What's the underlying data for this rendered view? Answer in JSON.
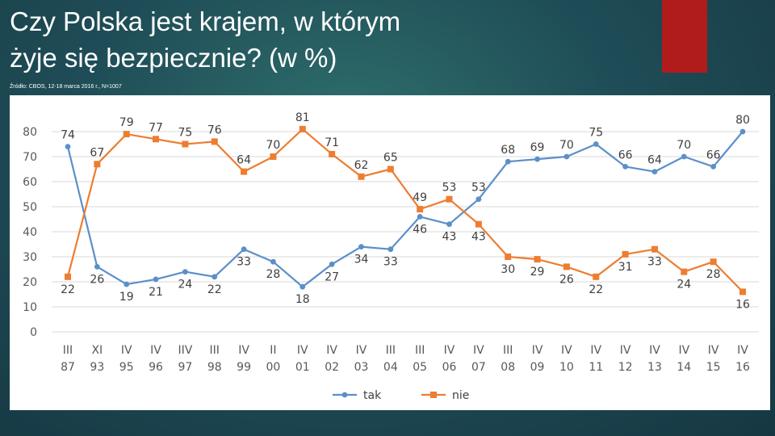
{
  "slide": {
    "title_line1": "Czy Polska jest krajem, w którym",
    "title_line2": "żyje się bezpiecznie?  (w %)",
    "source": "Źródło: CBOS, 12-18 marca 2016 r., N=1007",
    "accent_color": "#b01c1c"
  },
  "chart_data": {
    "type": "line",
    "title": "Czy Polska jest krajem, w którym żyje się bezpiecznie? (w %)",
    "ylim": [
      0,
      80
    ],
    "yticks": [
      0,
      10,
      20,
      30,
      40,
      50,
      60,
      70,
      80
    ],
    "grid": true,
    "legend_position": "bottom",
    "categories": [
      [
        "III",
        "87"
      ],
      [
        "XI",
        "93"
      ],
      [
        "IV",
        "95"
      ],
      [
        "IV",
        "96"
      ],
      [
        "IIV",
        "97"
      ],
      [
        "III",
        "98"
      ],
      [
        "IV",
        "99"
      ],
      [
        "II",
        "00"
      ],
      [
        "IV",
        "01"
      ],
      [
        "IV",
        "02"
      ],
      [
        "IV",
        "03"
      ],
      [
        "III",
        "04"
      ],
      [
        "III",
        "05"
      ],
      [
        "IV",
        "06"
      ],
      [
        "IV",
        "07"
      ],
      [
        "III",
        "08"
      ],
      [
        "IV",
        "09"
      ],
      [
        "IV",
        "10"
      ],
      [
        "IV",
        "11"
      ],
      [
        "IV",
        "12"
      ],
      [
        "IV",
        "13"
      ],
      [
        "IV",
        "14"
      ],
      [
        "IV",
        "15"
      ],
      [
        "IV",
        "16"
      ]
    ],
    "series": [
      {
        "name": "tak",
        "color": "#5b8fc9",
        "marker": "circle",
        "values": [
          74,
          26,
          19,
          21,
          24,
          22,
          33,
          28,
          18,
          27,
          34,
          33,
          46,
          43,
          53,
          68,
          69,
          70,
          75,
          66,
          64,
          70,
          66,
          80
        ]
      },
      {
        "name": "nie",
        "color": "#ed7d31",
        "marker": "square",
        "values": [
          22,
          67,
          79,
          77,
          75,
          76,
          64,
          70,
          81,
          71,
          62,
          65,
          49,
          53,
          43,
          30,
          29,
          26,
          22,
          31,
          33,
          24,
          28,
          16
        ]
      }
    ]
  }
}
